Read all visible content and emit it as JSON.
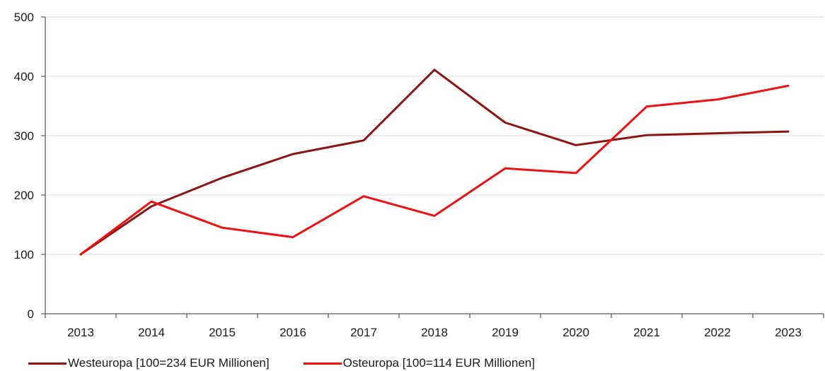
{
  "chart_data": {
    "type": "line",
    "categories": [
      "2013",
      "2014",
      "2015",
      "2016",
      "2017",
      "2018",
      "2019",
      "2020",
      "2021",
      "2022",
      "2023"
    ],
    "series": [
      {
        "name": "Westeuropa [100=234 EUR Millionen]",
        "color": "#8b1414",
        "values": [
          100,
          181,
          229,
          269,
          292,
          411,
          322,
          284,
          301,
          304,
          307
        ]
      },
      {
        "name": "Osteuropa [100=114 EUR Millionen]",
        "color": "#ee1111",
        "values": [
          100,
          189,
          145,
          129,
          198,
          165,
          245,
          237,
          349,
          361,
          384
        ]
      }
    ],
    "ylim": [
      0,
      500
    ],
    "yticks": [
      "0",
      "100",
      "200",
      "300",
      "400",
      "500"
    ],
    "grid": true,
    "legend_position": "bottom-left",
    "title": "",
    "xlabel": "",
    "ylabel": ""
  }
}
